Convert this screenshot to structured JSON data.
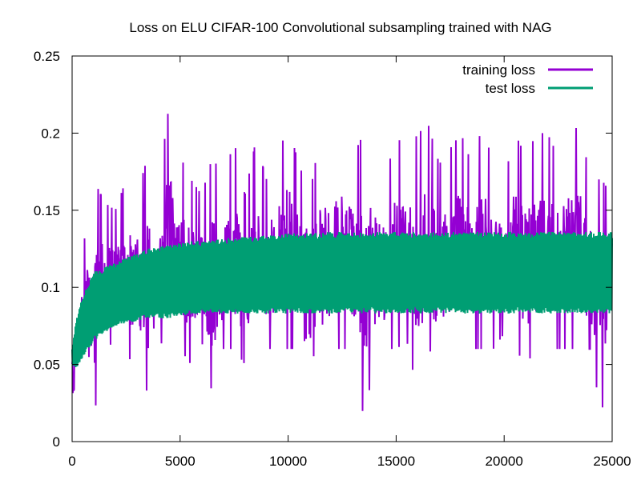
{
  "chart_data": {
    "type": "line",
    "title": "Loss on ELU CIFAR-100 Convolutional subsampling trained with NAG",
    "xlabel": "",
    "ylabel": "",
    "xlim": [
      0,
      25000
    ],
    "ylim": [
      0,
      0.25
    ],
    "x_ticks": [
      0,
      5000,
      10000,
      15000,
      20000,
      25000
    ],
    "y_ticks": [
      0,
      0.05,
      0.1,
      0.15,
      0.2,
      0.25
    ],
    "y_tick_labels": [
      "0",
      "0.05",
      "0.1",
      "0.15",
      "0.2",
      "0.25"
    ],
    "grid": false,
    "legend_position": "top-right",
    "series": [
      {
        "name": "training loss",
        "color": "#9400d3",
        "x": [
          0,
          500,
          1000,
          1500,
          2000,
          2500,
          3000,
          3500,
          4000,
          4500,
          5000,
          5500,
          6000,
          6500,
          7000,
          7500,
          8000,
          8500,
          9000,
          9500,
          10000,
          10500,
          11000,
          11500,
          12000,
          12500,
          13000,
          13500,
          14000,
          14500,
          15000,
          15500,
          16000,
          16500,
          17000,
          17500,
          18000,
          18500,
          19000,
          19500,
          20000,
          20500,
          21000,
          21500,
          22000,
          22500,
          23000,
          23500,
          24000,
          24500,
          25000
        ],
        "lower": [
          0.03,
          0.05,
          0.015,
          0.06,
          0.065,
          0.05,
          0.06,
          0.03,
          0.065,
          0.06,
          0.06,
          0.05,
          0.065,
          0.03,
          0.06,
          0.06,
          0.05,
          0.065,
          0.06,
          0.06,
          0.06,
          0.06,
          0.07,
          0.03,
          0.06,
          0.06,
          0.06,
          0.015,
          0.05,
          0.06,
          0.06,
          0.065,
          0.03,
          0.06,
          0.05,
          0.06,
          0.06,
          0.06,
          0.06,
          0.06,
          0.07,
          0.06,
          0.05,
          0.06,
          0.06,
          0.06,
          0.06,
          0.06,
          0.06,
          0.015,
          0.08
        ],
        "upper": [
          0.06,
          0.125,
          0.17,
          0.155,
          0.15,
          0.17,
          0.16,
          0.185,
          0.165,
          0.22,
          0.185,
          0.17,
          0.16,
          0.185,
          0.17,
          0.195,
          0.16,
          0.195,
          0.17,
          0.185,
          0.205,
          0.18,
          0.16,
          0.2,
          0.2,
          0.2,
          0.185,
          0.2,
          0.195,
          0.17,
          0.2,
          0.185,
          0.2,
          0.205,
          0.18,
          0.19,
          0.2,
          0.18,
          0.205,
          0.18,
          0.17,
          0.2,
          0.185,
          0.2,
          0.2,
          0.185,
          0.2,
          0.205,
          0.17,
          0.17,
          0.16
        ]
      },
      {
        "name": "test loss",
        "color": "#009e73",
        "x": [
          0,
          200,
          500,
          1000,
          1500,
          2000,
          2500,
          3000,
          3500,
          4000,
          4500,
          5000,
          5500,
          6000,
          6500,
          7000,
          7500,
          8000,
          8500,
          9000,
          9500,
          10000,
          11000,
          12000,
          13000,
          14000,
          15000,
          16000,
          17000,
          18000,
          19000,
          20000,
          21000,
          22000,
          23000,
          24000,
          25000
        ],
        "lower": [
          0.05,
          0.047,
          0.055,
          0.065,
          0.07,
          0.075,
          0.077,
          0.078,
          0.08,
          0.08,
          0.08,
          0.082,
          0.082,
          0.083,
          0.083,
          0.083,
          0.083,
          0.083,
          0.083,
          0.083,
          0.083,
          0.083,
          0.083,
          0.083,
          0.083,
          0.083,
          0.083,
          0.083,
          0.083,
          0.083,
          0.083,
          0.083,
          0.083,
          0.083,
          0.083,
          0.083,
          0.083
        ],
        "upper": [
          0.06,
          0.08,
          0.095,
          0.11,
          0.113,
          0.116,
          0.12,
          0.122,
          0.125,
          0.127,
          0.128,
          0.129,
          0.13,
          0.13,
          0.131,
          0.132,
          0.132,
          0.133,
          0.133,
          0.134,
          0.134,
          0.135,
          0.135,
          0.136,
          0.136,
          0.136,
          0.136,
          0.136,
          0.136,
          0.136,
          0.136,
          0.136,
          0.136,
          0.136,
          0.136,
          0.136,
          0.136
        ]
      }
    ]
  }
}
